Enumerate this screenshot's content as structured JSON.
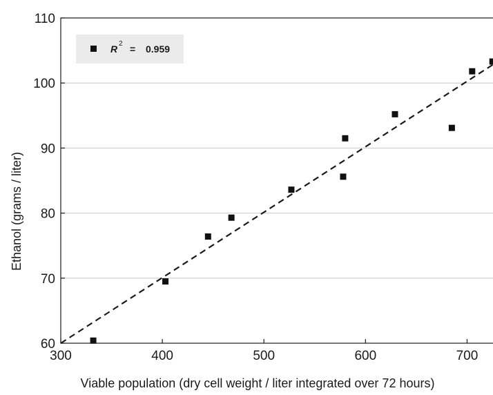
{
  "chart_data": {
    "type": "scatter",
    "xlabel": "Viable population (dry cell weight / liter integrated over 72 hours)",
    "ylabel": "Ethanol (grams / liter)",
    "xlim": [
      300,
      750
    ],
    "ylim": [
      60,
      110
    ],
    "xticks": [
      300,
      400,
      500,
      600,
      700
    ],
    "yticks": [
      60,
      70,
      80,
      90,
      100,
      110
    ],
    "grid": "horizontal",
    "series": [
      {
        "marker": "square",
        "color": "#111111",
        "points": [
          {
            "x": 332,
            "y": 60.4
          },
          {
            "x": 403,
            "y": 69.5
          },
          {
            "x": 445,
            "y": 76.4
          },
          {
            "x": 468,
            "y": 79.3
          },
          {
            "x": 527,
            "y": 83.6
          },
          {
            "x": 578,
            "y": 85.6
          },
          {
            "x": 580,
            "y": 91.5
          },
          {
            "x": 629,
            "y": 95.2
          },
          {
            "x": 685,
            "y": 93.1
          },
          {
            "x": 705,
            "y": 101.8
          },
          {
            "x": 725,
            "y": 103.3
          }
        ]
      }
    ],
    "fit_line": {
      "style": "dashed",
      "from": {
        "x": 300,
        "y": 60
      },
      "to": {
        "x": 750,
        "y": 105.3
      }
    },
    "legend": {
      "placement": "top-left",
      "symbol": "R",
      "superscript": "2",
      "equals": "=",
      "value": "0.959"
    }
  }
}
